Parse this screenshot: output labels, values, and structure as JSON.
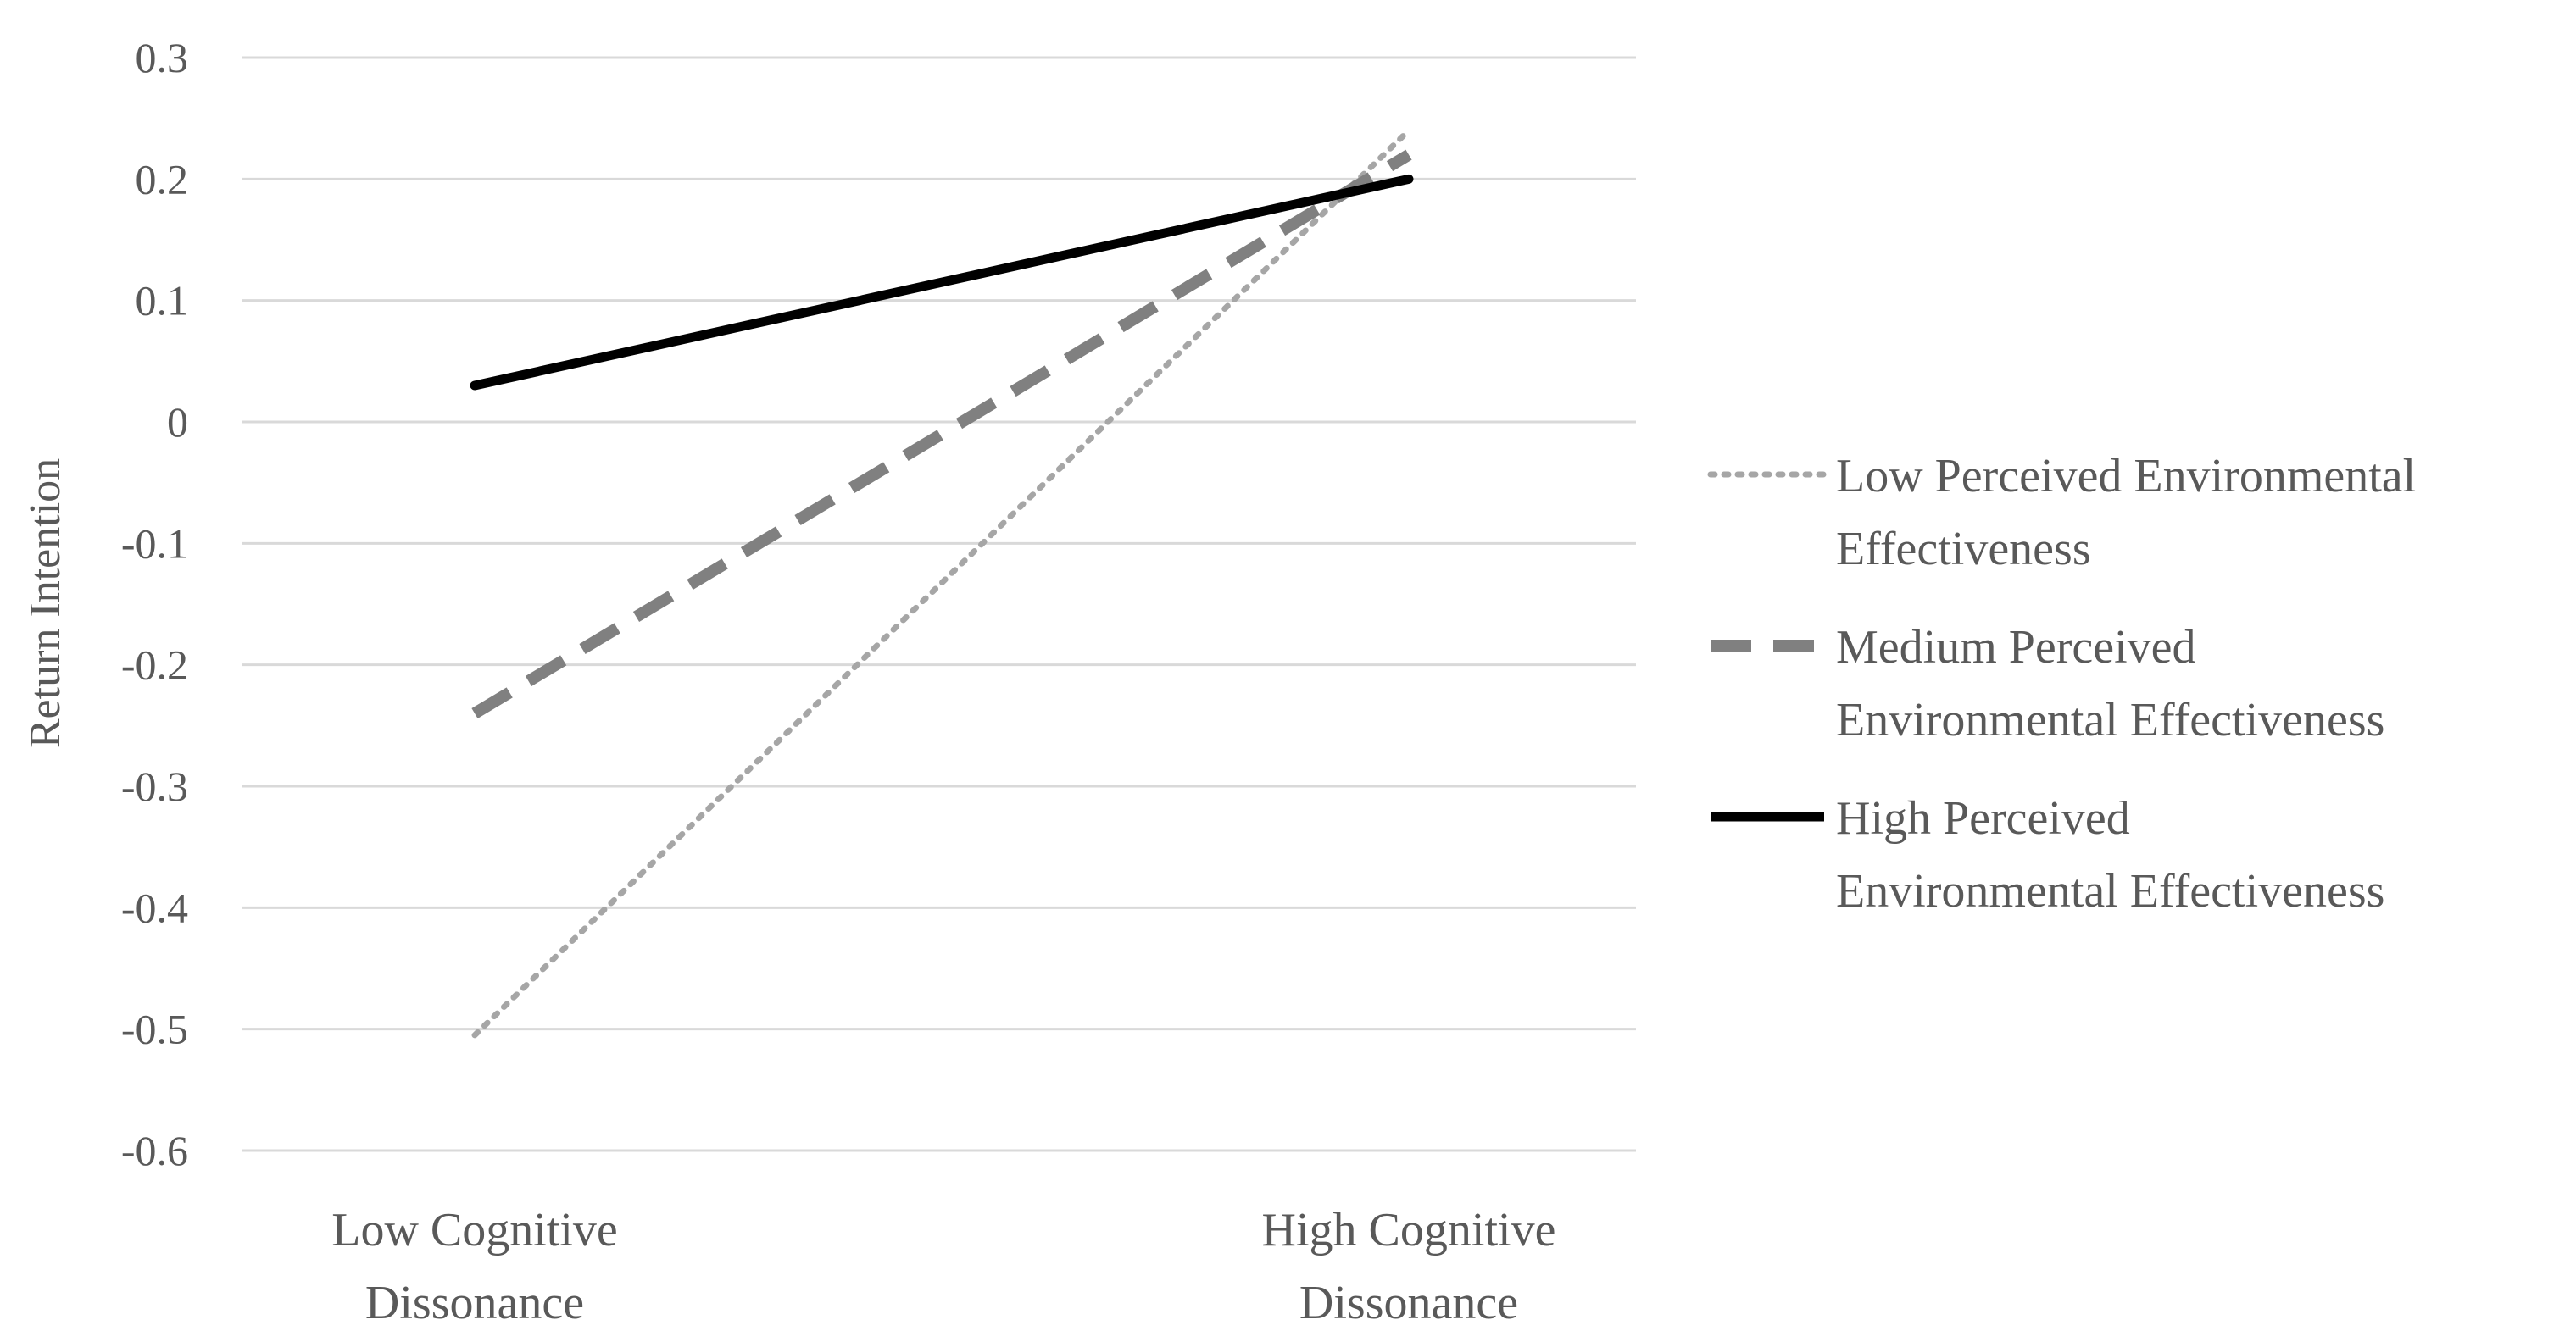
{
  "chart_data": {
    "type": "line",
    "title": "",
    "xlabel": "",
    "ylabel": "Return Intention",
    "categories": [
      [
        "Low Cognitive",
        "Dissonance"
      ],
      [
        "High Cognitive",
        "Dissonance"
      ]
    ],
    "ylim": [
      -0.6,
      0.3
    ],
    "yticks": [
      0.3,
      0.2,
      0.1,
      0,
      -0.1,
      -0.2,
      -0.3,
      -0.4,
      -0.5,
      -0.6
    ],
    "ytick_labels": [
      "0.3",
      "0.2",
      "0.1",
      "0",
      "-0.1",
      "-0.2",
      "-0.3",
      "-0.4",
      "-0.5",
      "-0.6"
    ],
    "grid": true,
    "legend_position": "right",
    "series": [
      {
        "name": "Low Perceived Environmental Effectiveness",
        "legend_lines": [
          "Low Perceived Environmental",
          "Effectiveness"
        ],
        "values": [
          -0.505,
          0.24
        ],
        "style": "dotted",
        "color": "#a6a6a6"
      },
      {
        "name": "Medium Perceived Environmental Effectiveness",
        "legend_lines": [
          "Medium Perceived",
          "Environmental Effectiveness"
        ],
        "values": [
          -0.24,
          0.22
        ],
        "style": "dashed",
        "color": "#808080"
      },
      {
        "name": "High Perceived Environmental Effectiveness",
        "legend_lines": [
          "High Perceived",
          "Environmental Effectiveness"
        ],
        "values": [
          0.03,
          0.2
        ],
        "style": "solid",
        "color": "#000000"
      }
    ]
  }
}
